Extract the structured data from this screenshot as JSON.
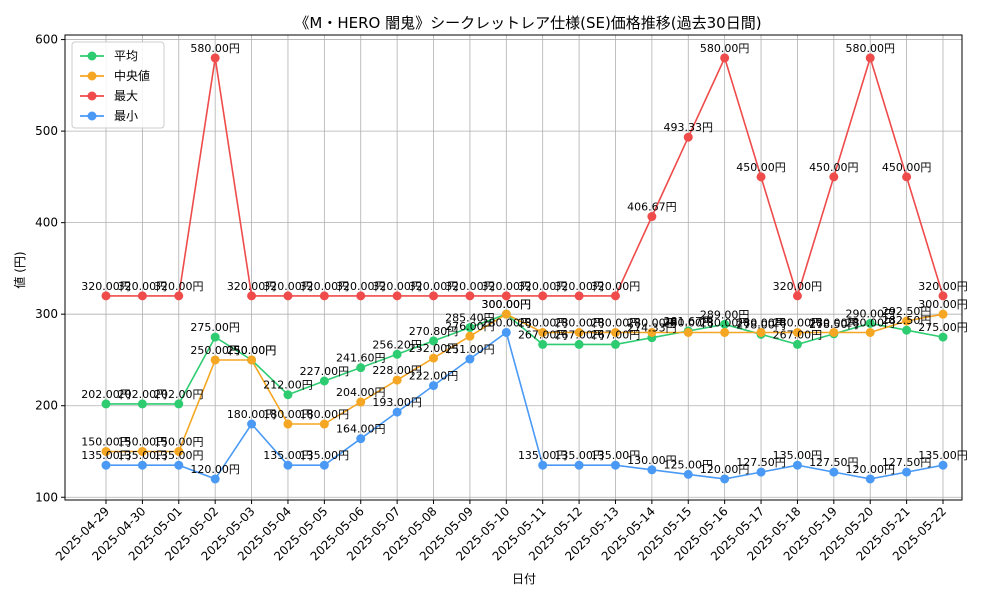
{
  "chart_data": {
    "type": "line",
    "title": "《M・HERO 闇鬼》シークレットレア仕様(SE)価格推移(過去30日間)",
    "xlabel": "日付",
    "ylabel": "値 (円)",
    "ylim": [
      97,
      605
    ],
    "yticks": [
      100,
      200,
      300,
      400,
      500,
      600
    ],
    "grid": true,
    "legend_position": "top-left",
    "label_suffix": "円",
    "categories": [
      "2025-04-29",
      "2025-04-30",
      "2025-05-01",
      "2025-05-02",
      "2025-05-03",
      "2025-05-04",
      "2025-05-05",
      "2025-05-06",
      "2025-05-07",
      "2025-05-08",
      "2025-05-09",
      "2025-05-10",
      "2025-05-11",
      "2025-05-12",
      "2025-05-13",
      "2025-05-14",
      "2025-05-15",
      "2025-05-16",
      "2025-05-17",
      "2025-05-18",
      "2025-05-19",
      "2025-05-20",
      "2025-05-21",
      "2025-05-22"
    ],
    "series": [
      {
        "name": "平均",
        "color": "#2ecc71",
        "values": [
          202,
          202,
          202,
          275,
          250,
          212,
          227,
          241.6,
          256.2,
          270.8,
          285.4,
          300,
          267,
          267,
          267,
          274.33,
          281.67,
          289,
          278,
          267,
          278.5,
          290,
          282.5,
          275
        ]
      },
      {
        "name": "中央値",
        "color": "#f5a623",
        "values": [
          150,
          150,
          150,
          250,
          250,
          180,
          180,
          204,
          228,
          252,
          276,
          300,
          280,
          280,
          280,
          280,
          280,
          280,
          280,
          280,
          280,
          280,
          292.5,
          300
        ]
      },
      {
        "name": "最大",
        "color": "#ef4b4b",
        "values": [
          320,
          320,
          320,
          580,
          320,
          320,
          320,
          320,
          320,
          320,
          320,
          320,
          320,
          320,
          320,
          406.67,
          493.33,
          580,
          450,
          320,
          450,
          580,
          450,
          320
        ]
      },
      {
        "name": "最小",
        "color": "#4a9af5",
        "values": [
          135,
          135,
          135,
          120,
          180,
          135,
          135,
          164,
          193,
          222,
          251,
          280,
          135,
          135,
          135,
          130,
          125,
          120,
          127.5,
          135,
          127.5,
          120,
          127.5,
          135
        ]
      }
    ]
  }
}
